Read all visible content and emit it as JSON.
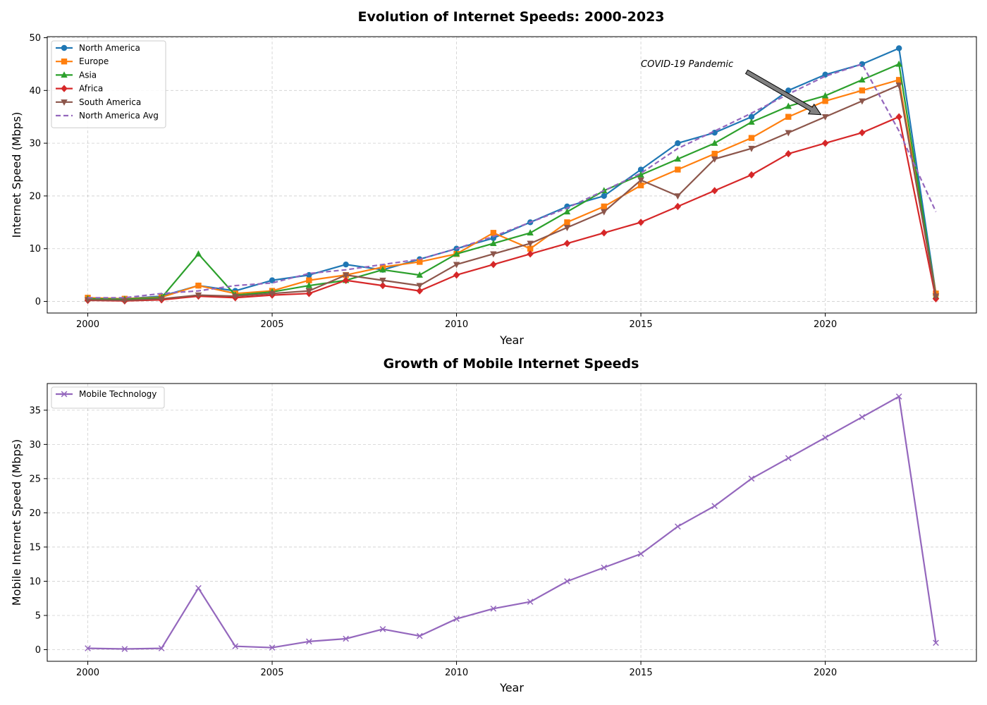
{
  "chart_data": [
    {
      "type": "line",
      "title": "Evolution of Internet Speeds: 2000-2023",
      "xlabel": "Year",
      "ylabel": "Internet Speed (Mbps)",
      "xlim": [
        1998.9,
        2024.1
      ],
      "ylim": [
        -2.2,
        50.2
      ],
      "xticks": [
        2000,
        2005,
        2010,
        2015,
        2020
      ],
      "yticks": [
        0,
        10,
        20,
        30,
        40,
        50
      ],
      "grid": true,
      "legend_position": "top-left",
      "x": [
        2000,
        2001,
        2002,
        2003,
        2004,
        2005,
        2006,
        2007,
        2008,
        2009,
        2010,
        2011,
        2012,
        2013,
        2014,
        2015,
        2016,
        2017,
        2018,
        2019,
        2020,
        2021,
        2022,
        2023
      ],
      "series": [
        {
          "name": "North America",
          "color": "#1f77b4",
          "marker": "circle",
          "dashed": false,
          "values": [
            0.5,
            0.5,
            1,
            3,
            2,
            4,
            5,
            7,
            6,
            8,
            10,
            12,
            15,
            18,
            20,
            25,
            30,
            32,
            35,
            40,
            43,
            45,
            48,
            1.5
          ]
        },
        {
          "name": "Europe",
          "color": "#ff7f0e",
          "marker": "square",
          "dashed": false,
          "values": [
            0.7,
            0.5,
            0.8,
            3,
            1.5,
            2,
            4,
            5,
            6.5,
            7.5,
            9,
            13,
            10,
            15,
            18,
            22,
            25,
            28,
            31,
            35,
            38,
            40,
            42,
            1.5
          ]
        },
        {
          "name": "Asia",
          "color": "#2ca02c",
          "marker": "triangle-up",
          "dashed": false,
          "values": [
            0.5,
            0.4,
            0.7,
            9,
            1.2,
            1.8,
            3,
            4,
            6,
            5,
            9,
            11,
            13,
            17,
            21,
            24,
            27,
            30,
            34,
            37,
            39,
            42,
            45,
            1
          ]
        },
        {
          "name": "Africa",
          "color": "#d62728",
          "marker": "diamond",
          "dashed": false,
          "values": [
            0.2,
            0.1,
            0.3,
            1,
            0.7,
            1.2,
            1.5,
            4,
            3,
            2,
            5,
            7,
            9,
            11,
            13,
            15,
            18,
            21,
            24,
            28,
            30,
            32,
            35,
            0.5
          ]
        },
        {
          "name": "South America",
          "color": "#8c564b",
          "marker": "triangle-down",
          "dashed": false,
          "values": [
            0.3,
            0.2,
            0.5,
            1.2,
            1,
            1.5,
            2,
            5,
            4,
            3,
            7,
            9,
            11,
            14,
            17,
            23,
            20,
            27,
            29,
            32,
            35,
            38,
            41,
            1
          ]
        },
        {
          "name": "North America Avg",
          "color": "#9467bd",
          "marker": "none",
          "dashed": true,
          "values": [
            0.7,
            0.7,
            1.5,
            2,
            3,
            3.5,
            5.3,
            6,
            7,
            8,
            10,
            12.3,
            15,
            17.7,
            21,
            24.3,
            29,
            32.3,
            35.7,
            39.3,
            42.7,
            45,
            32.3,
            17
          ]
        }
      ],
      "annotations": [
        {
          "text": "COVID-19 Pandemic",
          "text_x": 2015,
          "text_y": 45,
          "arrow_x": 2020,
          "arrow_y": 35
        }
      ]
    },
    {
      "type": "line",
      "title": "Growth of Mobile Internet Speeds",
      "xlabel": "Year",
      "ylabel": "Mobile Internet Speed (Mbps)",
      "xlim": [
        1998.9,
        2024.1
      ],
      "ylim": [
        -1.7,
        38.9
      ],
      "xticks": [
        2000,
        2005,
        2010,
        2015,
        2020
      ],
      "yticks": [
        0,
        5,
        10,
        15,
        20,
        25,
        30,
        35
      ],
      "grid": true,
      "legend_position": "top-left",
      "x": [
        2000,
        2001,
        2002,
        2003,
        2004,
        2005,
        2006,
        2007,
        2008,
        2009,
        2010,
        2011,
        2012,
        2013,
        2014,
        2015,
        2016,
        2017,
        2018,
        2019,
        2020,
        2021,
        2022,
        2023
      ],
      "series": [
        {
          "name": "Mobile Technology",
          "color": "#9467bd",
          "marker": "x",
          "dashed": false,
          "values": [
            0.2,
            0.1,
            0.2,
            9,
            0.5,
            0.3,
            1.2,
            1.6,
            3,
            2,
            4.5,
            6,
            7,
            10,
            12,
            14,
            18,
            21,
            25,
            28,
            31,
            34,
            37,
            1
          ]
        }
      ]
    }
  ]
}
